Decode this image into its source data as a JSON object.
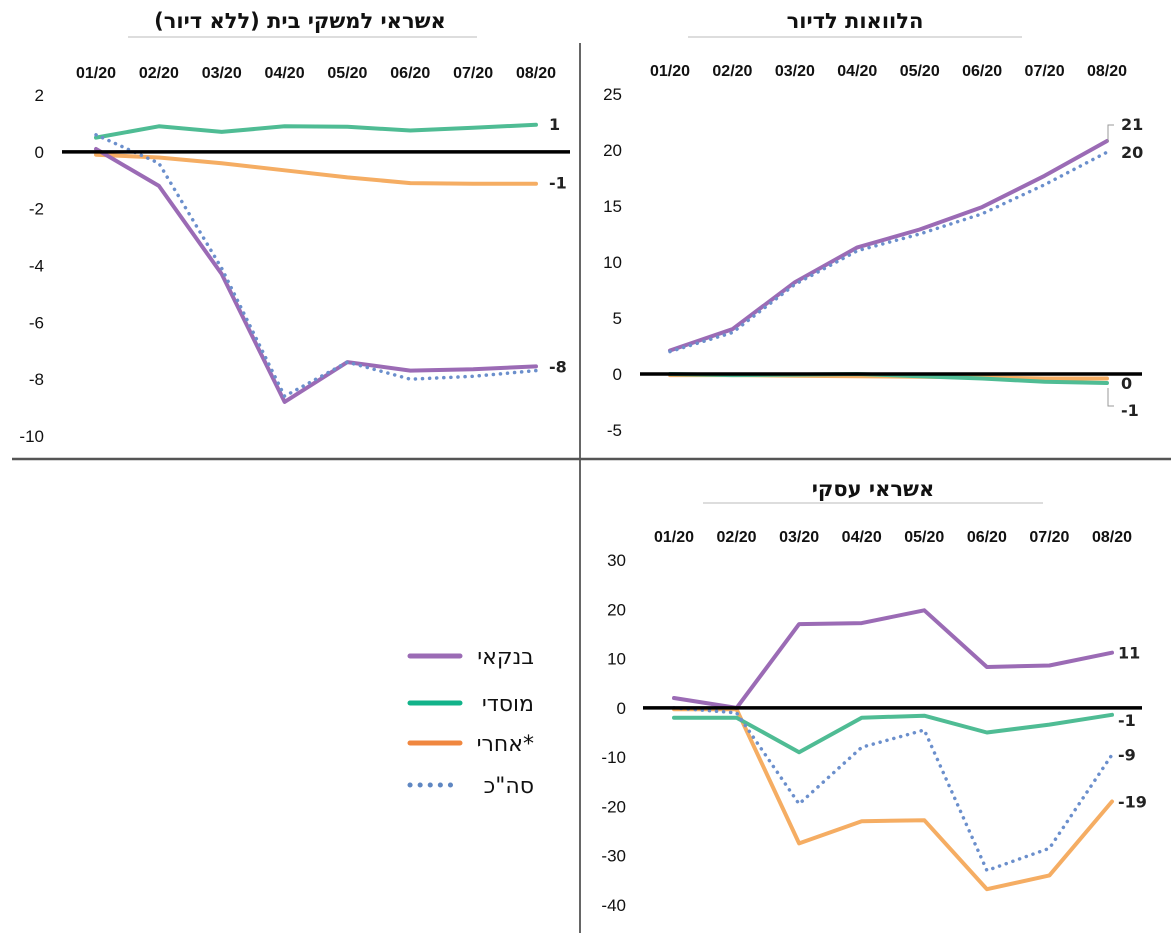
{
  "chart_data": [
    {
      "type": "line",
      "title": "אשראי למשקי בית (ללא דיור)",
      "categories": [
        "01/20",
        "02/20",
        "03/20",
        "04/20",
        "05/20",
        "06/20",
        "07/20",
        "08/20"
      ],
      "ylim": [
        -10,
        2
      ],
      "yticks": [
        2,
        0,
        -2,
        -4,
        -6,
        -8,
        -10
      ],
      "series": [
        {
          "name": "בנקאי",
          "values": [
            0.1,
            -1.2,
            -4.3,
            -8.8,
            -7.4,
            -7.7,
            -7.65,
            -7.55
          ]
        },
        {
          "name": "מוסדי",
          "values": [
            0.5,
            0.9,
            0.7,
            0.9,
            0.88,
            0.75,
            0.85,
            0.95
          ]
        },
        {
          "name": "אחרי*",
          "values": [
            -0.1,
            -0.2,
            -0.4,
            -0.65,
            -0.9,
            -1.1,
            -1.12,
            -1.12
          ]
        },
        {
          "name": "סה\"כ",
          "values": [
            0.6,
            -0.4,
            -4.1,
            -8.6,
            -7.4,
            -8.0,
            -7.9,
            -7.7
          ]
        }
      ],
      "end_labels": [
        {
          "series": "מוסדי",
          "text": "1"
        },
        {
          "series": "אחרי*",
          "text": "-1"
        },
        {
          "series": "בנקאי",
          "text": "-8"
        }
      ]
    },
    {
      "type": "line",
      "title": "הלוואות לדיור",
      "categories": [
        "01/20",
        "02/20",
        "03/20",
        "04/20",
        "05/20",
        "06/20",
        "07/20",
        "08/20"
      ],
      "ylim": [
        -5,
        25
      ],
      "yticks": [
        25,
        20,
        15,
        10,
        5,
        0,
        -5
      ],
      "series": [
        {
          "name": "בנקאי",
          "values": [
            2.1,
            4.0,
            8.2,
            11.3,
            12.9,
            14.9,
            17.7,
            20.8
          ]
        },
        {
          "name": "מוסדי",
          "values": [
            0.0,
            -0.1,
            -0.05,
            0.0,
            -0.2,
            -0.4,
            -0.7,
            -0.8
          ]
        },
        {
          "name": "אחרי*",
          "values": [
            -0.1,
            -0.1,
            -0.15,
            -0.2,
            -0.25,
            -0.3,
            -0.4,
            -0.4
          ]
        },
        {
          "name": "סה\"כ",
          "values": [
            2.0,
            3.7,
            8.0,
            11.0,
            12.5,
            14.3,
            16.9,
            19.8
          ]
        }
      ],
      "end_labels": [
        {
          "series": "בנקאי",
          "text": "21"
        },
        {
          "series": "סה\"כ",
          "text": "20"
        },
        {
          "series": "אחרי*",
          "text": "0"
        },
        {
          "series": "מוסדי",
          "text": "-1"
        }
      ]
    },
    {
      "type": "line",
      "title": "אשראי עסקי",
      "categories": [
        "01/20",
        "02/20",
        "03/20",
        "04/20",
        "05/20",
        "06/20",
        "07/20",
        "08/20"
      ],
      "ylim": [
        -40,
        30
      ],
      "yticks": [
        30,
        20,
        10,
        0,
        -10,
        -20,
        -30,
        -40
      ],
      "series": [
        {
          "name": "בנקאי",
          "values": [
            2.0,
            0.0,
            17.0,
            17.2,
            19.8,
            8.3,
            8.6,
            11.2
          ]
        },
        {
          "name": "מוסדי",
          "values": [
            -2.0,
            -2.0,
            -9.0,
            -2.0,
            -1.6,
            -5.0,
            -3.4,
            -1.4
          ]
        },
        {
          "name": "אחרי*",
          "values": [
            -0.3,
            -0.3,
            -27.5,
            -23.0,
            -22.8,
            -36.8,
            -34.0,
            -19.0
          ]
        },
        {
          "name": "סה\"כ",
          "values": [
            0.0,
            -1.0,
            -19.5,
            -8.0,
            -4.5,
            -33.0,
            -28.5,
            -9.5
          ]
        }
      ],
      "end_labels": [
        {
          "series": "בנקאי",
          "text": "11"
        },
        {
          "series": "מוסדי",
          "text": "-1"
        },
        {
          "series": "סה\"כ",
          "text": "-9"
        },
        {
          "series": "אחרי*",
          "text": "-19"
        }
      ]
    }
  ],
  "legend": [
    {
      "label": "בנקאי",
      "color": "#9b6bb5",
      "style": "solid"
    },
    {
      "label": "מוסדי",
      "color": "#12b38a",
      "style": "solid"
    },
    {
      "label": "אחרי*",
      "color": "#f0873f",
      "style": "solid"
    },
    {
      "label": "סה\"כ",
      "color": "#5f87c2",
      "style": "dotted"
    }
  ],
  "series_colors": {
    "בנקאי": "#9b6bb5",
    "מוסדי": "#4fbc94",
    "אחרי*": "#f5ad63",
    "סה\"כ": "#6b8fcc"
  }
}
